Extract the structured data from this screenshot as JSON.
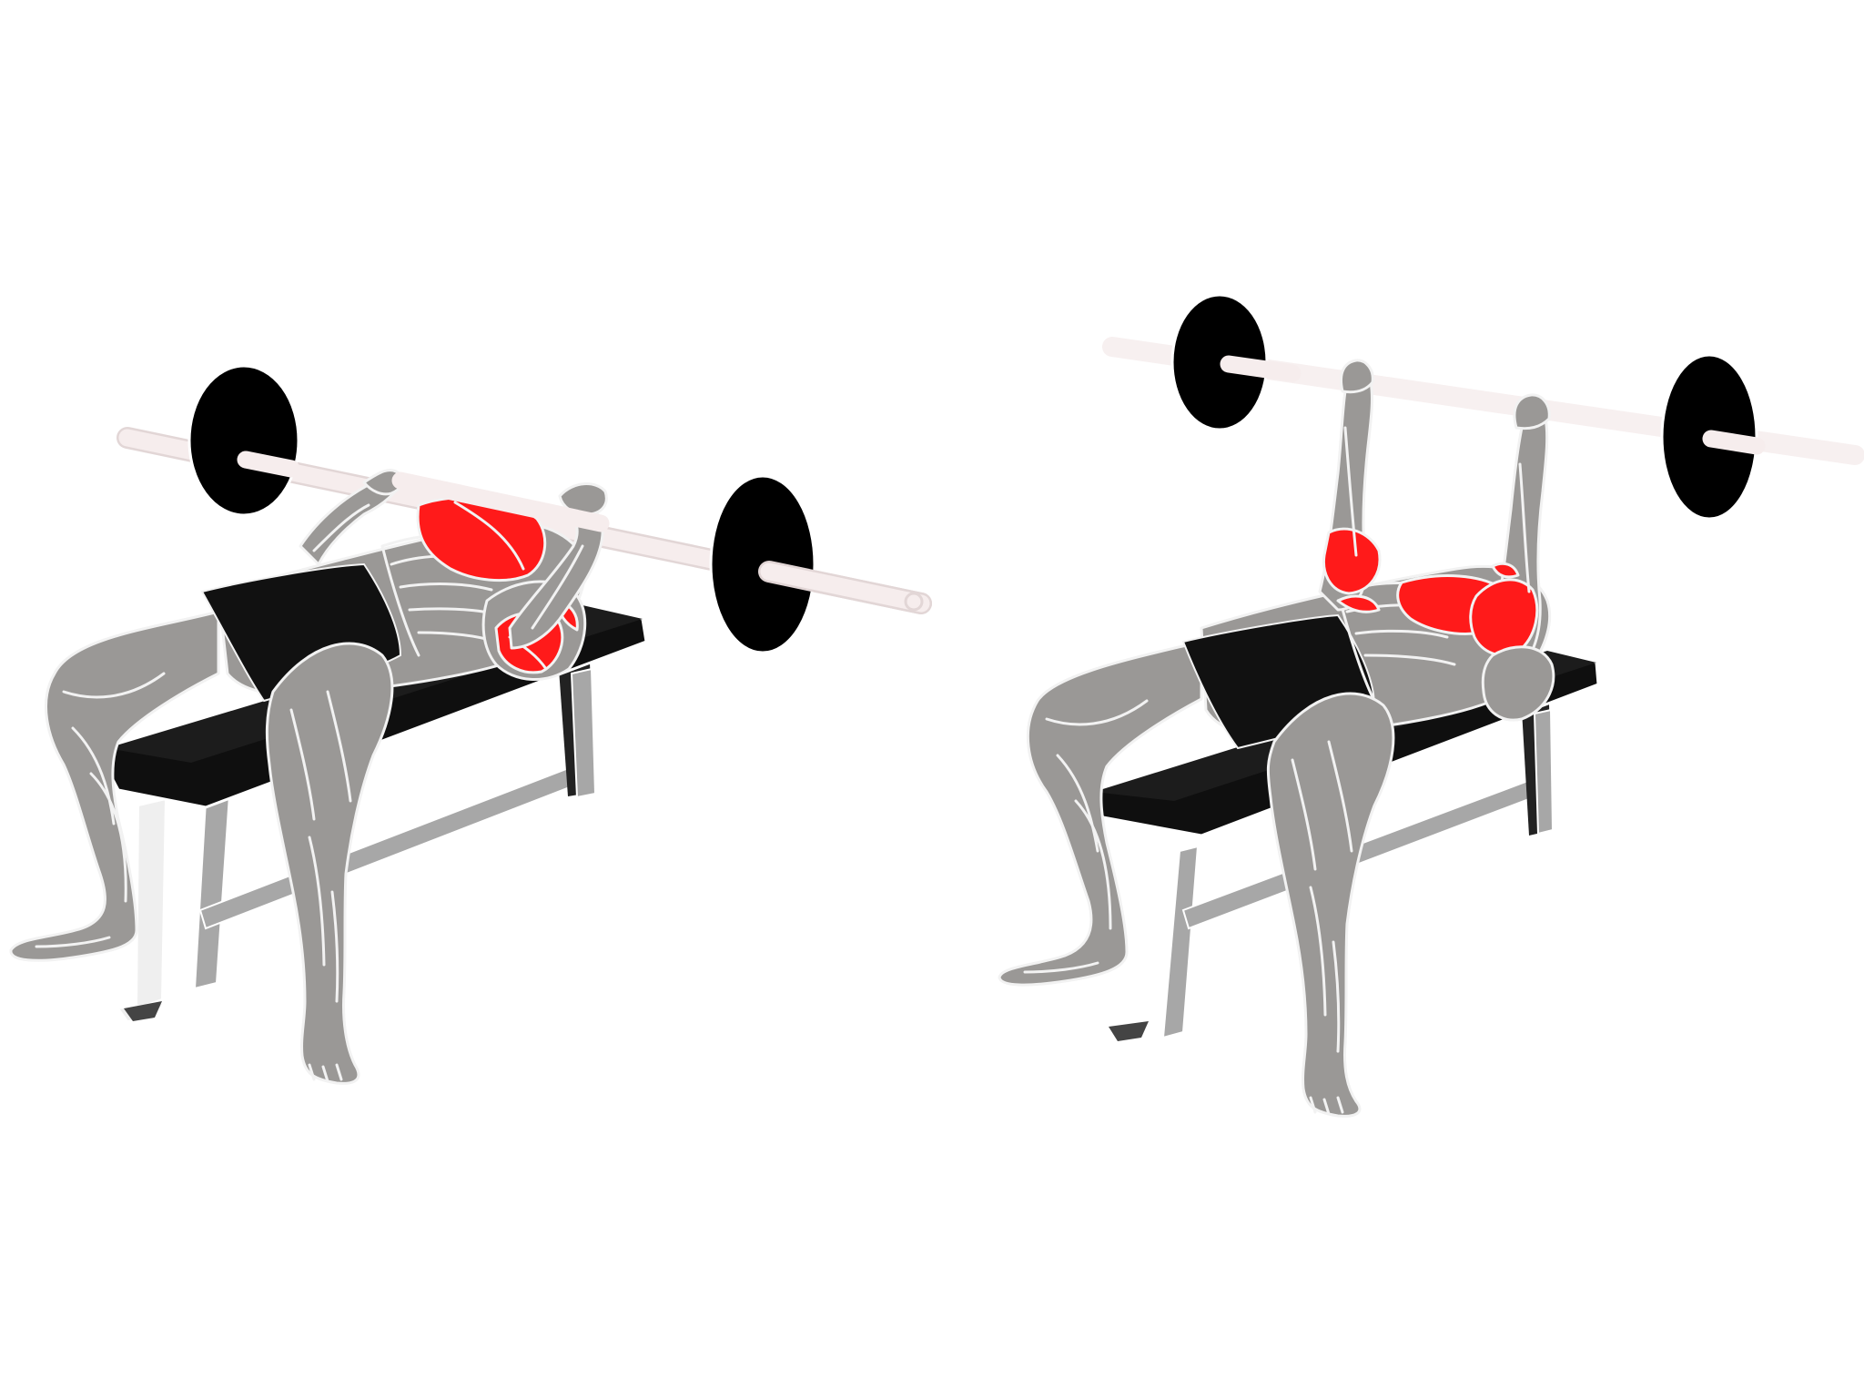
{
  "figure": {
    "panels": [
      {
        "phase": "lowered",
        "bar_position": "chest"
      },
      {
        "phase": "pressed",
        "bar_position": "arms-extended"
      }
    ]
  },
  "colors": {
    "background": "#ffffff",
    "body": "#9a9896",
    "body_shadow": "#7d7b79",
    "muscle_line": "#f2f2f2",
    "highlight": "#ff1a1a",
    "clothing": "#111111",
    "bench_pad": "#0f0f0f",
    "bench_frame": "#a7a7a7",
    "bench_frame_light": "#efefef",
    "bar": "#f6eded",
    "bar_edge": "#e2d6d6",
    "plate": "#000000"
  },
  "icons": {
    "plate": "weight-plate-icon",
    "bench": "flat-bench-icon"
  }
}
